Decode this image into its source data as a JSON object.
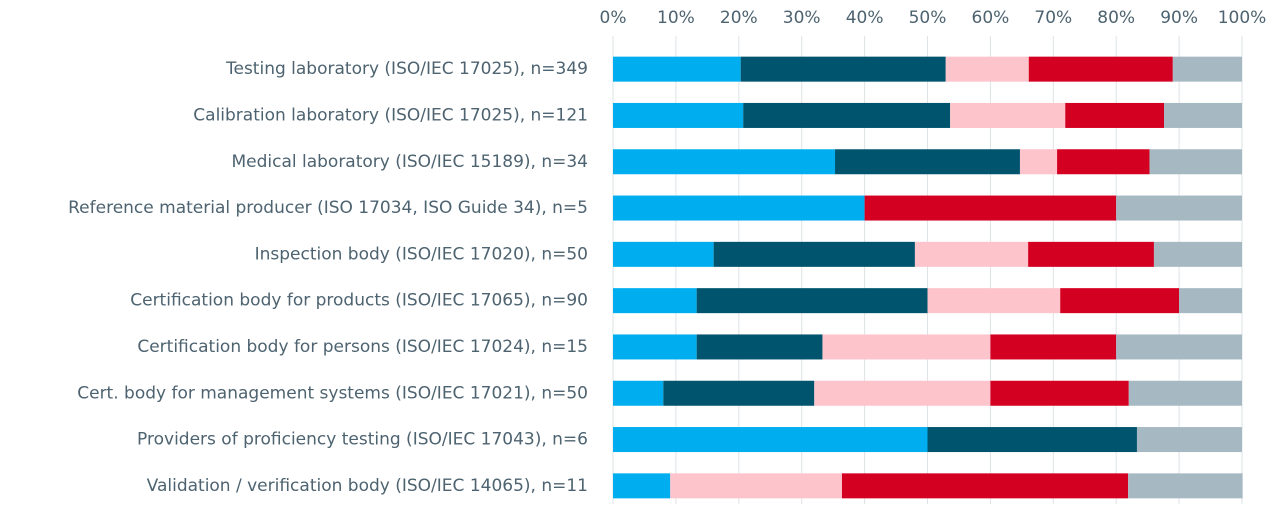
{
  "chart_data": {
    "type": "stacked_barh",
    "categories": [
      "Testing laboratory (ISO/IEC 17025), n=349",
      "Calibration laboratory (ISO/IEC 17025), n=121",
      "Medical laboratory (ISO/IEC 15189), n=34",
      "Reference material producer (ISO 17034, ISO Guide 34), n=5",
      "Inspection body (ISO/IEC 17020), n=50",
      "Certification body for products (ISO/IEC 17065), n=90",
      "Certification body for persons (ISO/IEC 17024), n=15",
      "Cert. body for management systems (ISO/IEC 17021), n=50",
      "Providers of proficiency testing (ISO/IEC 17043), n=6",
      "Validation / verification body (ISO/IEC 14065), n=11"
    ],
    "series": [
      {
        "color": "#00aeef",
        "values": [
          20.3,
          20.7,
          35.3,
          40,
          16,
          13.3,
          13.3,
          8,
          50,
          9.1
        ]
      },
      {
        "color": "#00546e",
        "values": [
          32.6,
          32.9,
          29.4,
          0,
          32,
          36.7,
          20,
          24,
          33.3,
          0
        ]
      },
      {
        "color": "#fdc4cc",
        "values": [
          13.2,
          18.3,
          5.9,
          0,
          18,
          21.1,
          26.7,
          28,
          0,
          27.3
        ]
      },
      {
        "color": "#d40022",
        "values": [
          22.9,
          15.7,
          14.7,
          40,
          20,
          18.9,
          20,
          22,
          0,
          45.5
        ]
      },
      {
        "color": "#a6b9c3",
        "values": [
          11.0,
          12.4,
          14.7,
          20,
          14,
          10,
          20,
          18,
          16.7,
          18.2
        ]
      }
    ],
    "xlim": [
      0,
      100
    ],
    "xticks": [
      {
        "value": 0,
        "label": "0%"
      },
      {
        "value": 10,
        "label": "10%"
      },
      {
        "value": 20,
        "label": "20%"
      },
      {
        "value": 30,
        "label": "30%"
      },
      {
        "value": 40,
        "label": "40%"
      },
      {
        "value": 50,
        "label": "50%"
      },
      {
        "value": 60,
        "label": "60%"
      },
      {
        "value": 70,
        "label": "70%"
      },
      {
        "value": 80,
        "label": "80%"
      },
      {
        "value": 90,
        "label": "90%"
      },
      {
        "value": 100,
        "label": "100%"
      }
    ],
    "grid": true
  }
}
